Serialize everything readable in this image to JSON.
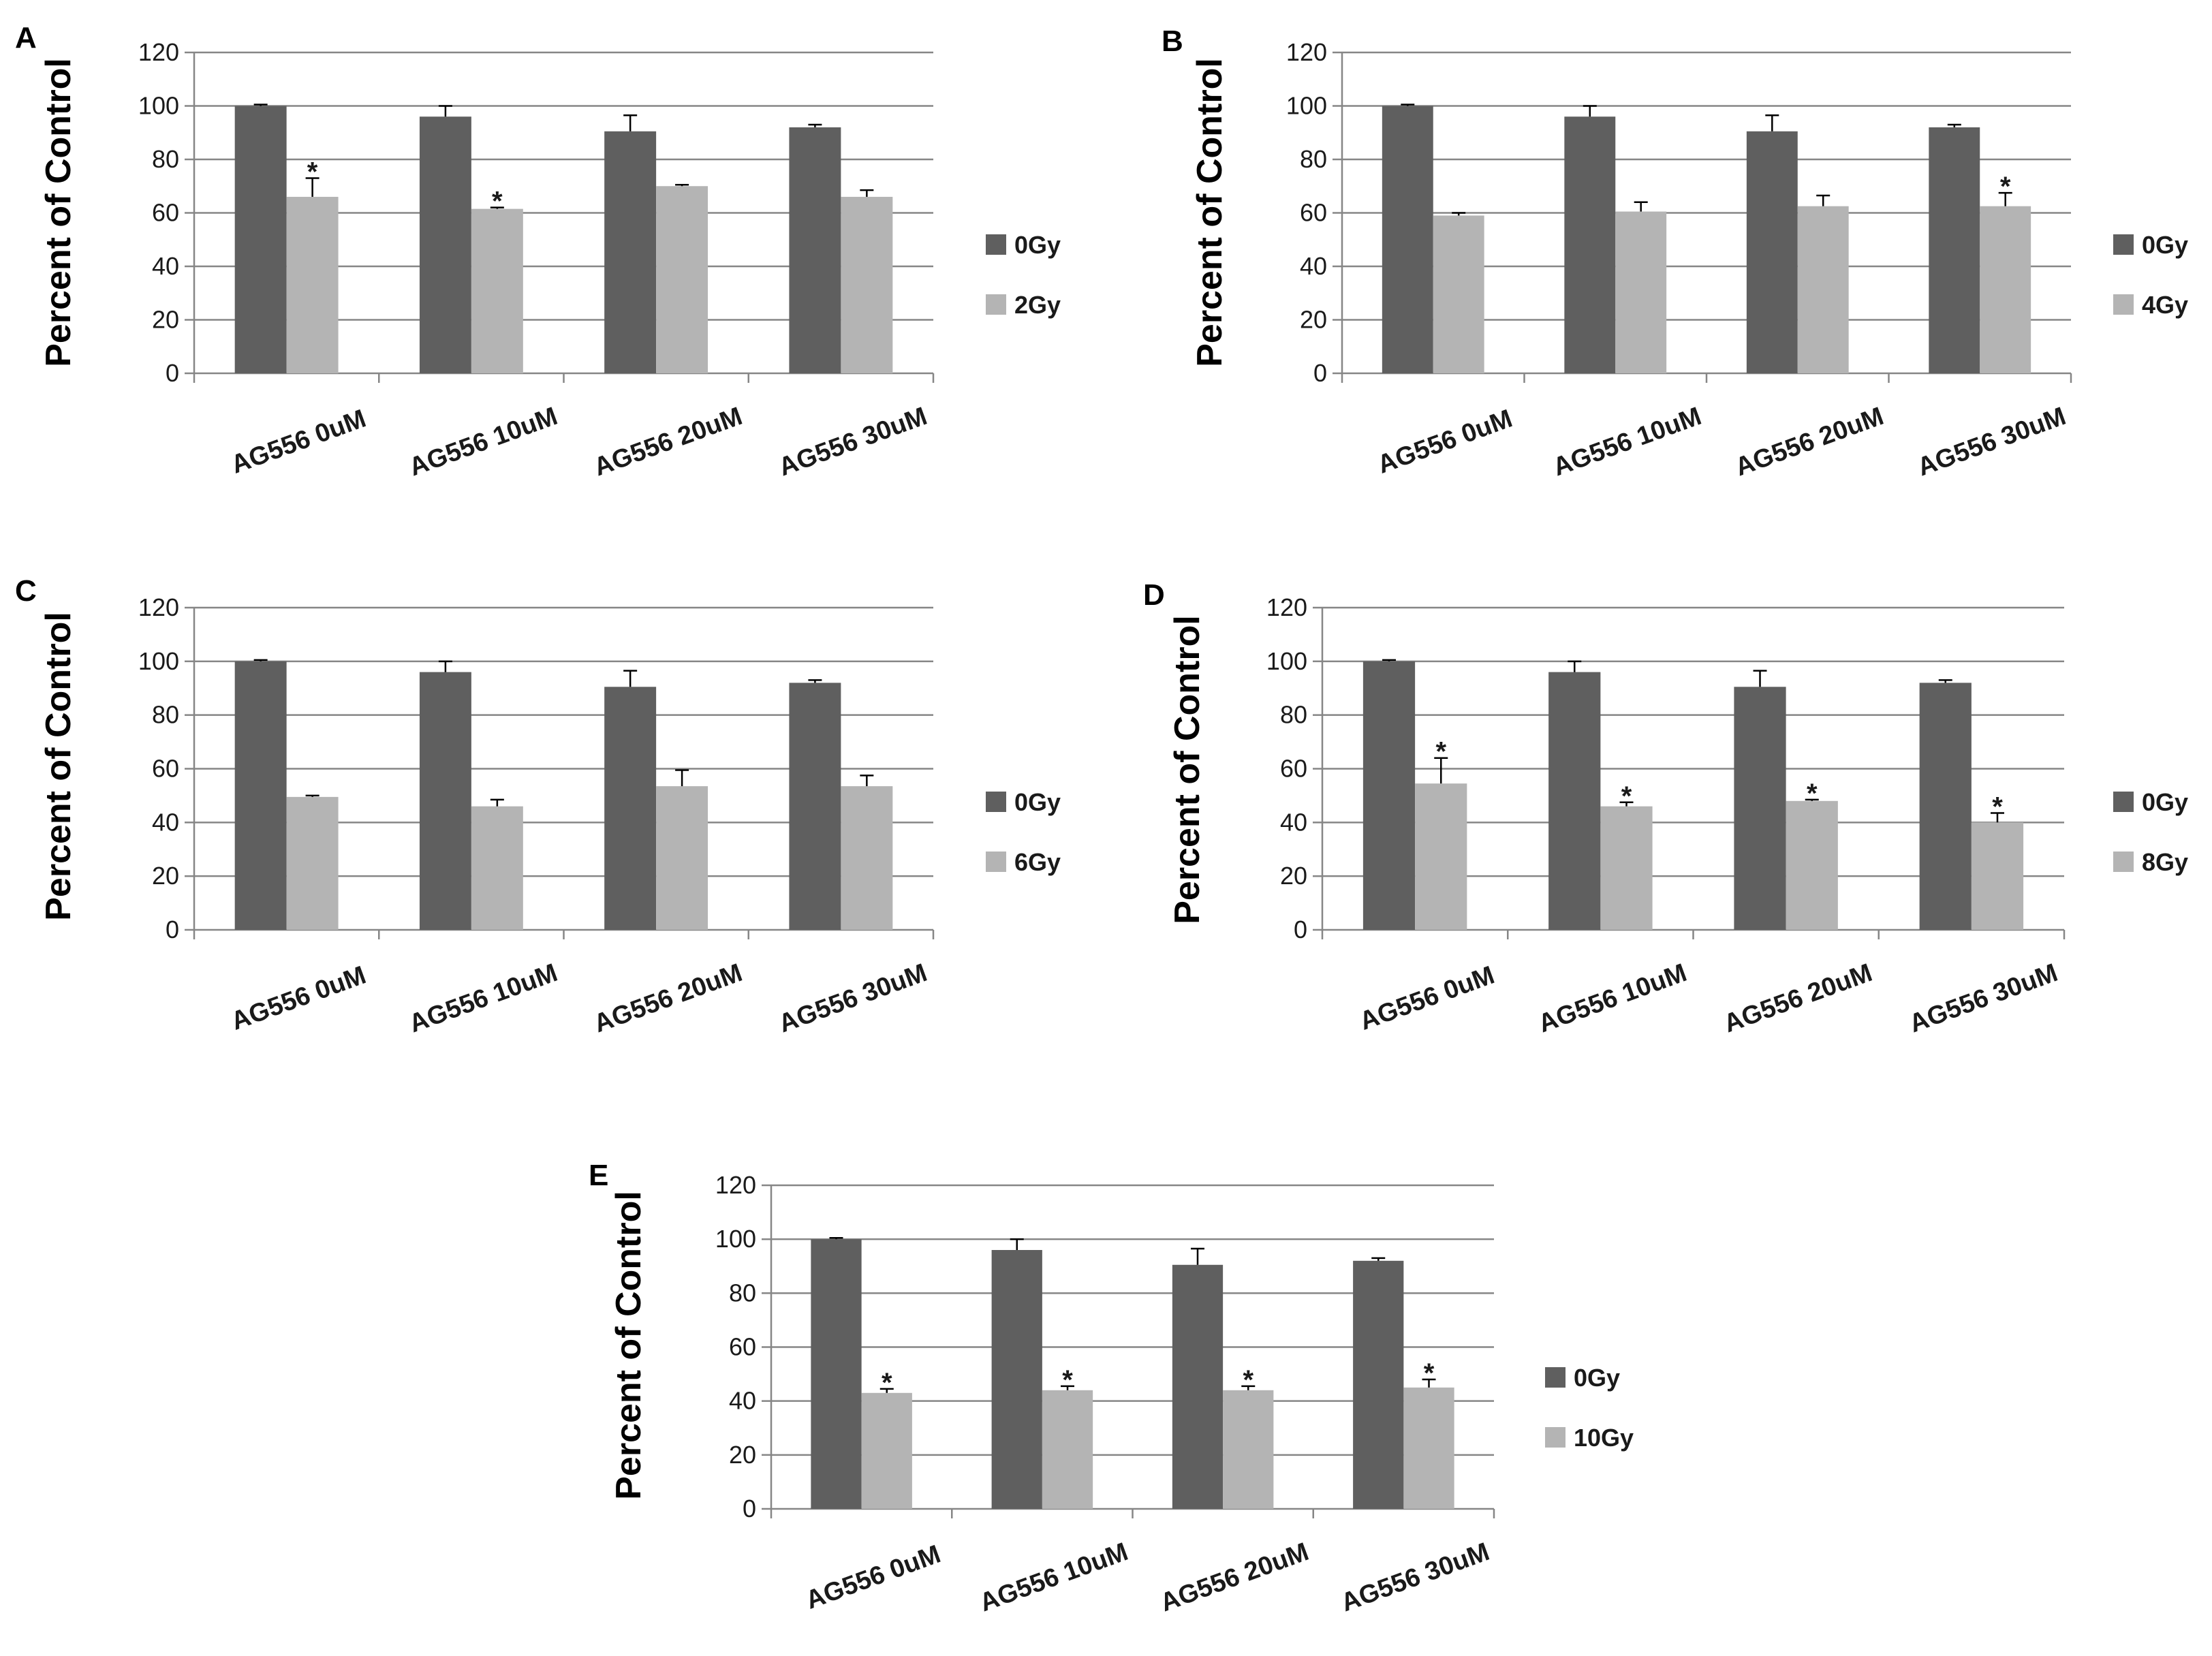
{
  "chart_data": [
    {
      "panel": "A",
      "type": "bar",
      "ylabel": "Percent of Control",
      "ylim": [
        0,
        120
      ],
      "yticks": [
        "0",
        "20",
        "40",
        "60",
        "80",
        "100",
        "120"
      ],
      "grid": true,
      "categories": [
        "AG556 0uM",
        "AG556 10uM",
        "AG556 20uM",
        "AG556 30uM"
      ],
      "series": [
        {
          "name": "0Gy",
          "color": "#5f5f5f",
          "values": [
            100,
            96,
            90.5,
            92
          ],
          "errors": [
            0.5,
            4,
            6,
            1
          ]
        },
        {
          "name": "2Gy",
          "color": "#b4b4b4",
          "values": [
            66,
            61.5,
            70,
            66
          ],
          "errors": [
            7,
            0.5,
            0.5,
            2.5
          ],
          "significance": [
            "*",
            "*",
            "",
            ""
          ]
        }
      ],
      "legend": "right"
    },
    {
      "panel": "B",
      "type": "bar",
      "ylabel": "Percent of Control",
      "ylim": [
        0,
        120
      ],
      "yticks": [
        "0",
        "20",
        "40",
        "60",
        "80",
        "100",
        "120"
      ],
      "grid": true,
      "categories": [
        "AG556 0uM",
        "AG556 10uM",
        "AG556 20uM",
        "AG556 30uM"
      ],
      "series": [
        {
          "name": "0Gy",
          "color": "#5f5f5f",
          "values": [
            100,
            96,
            90.5,
            92
          ],
          "errors": [
            0.5,
            4,
            6,
            1
          ]
        },
        {
          "name": "4Gy",
          "color": "#b4b4b4",
          "values": [
            59,
            60.5,
            62.5,
            62.5
          ],
          "errors": [
            1,
            3.5,
            4,
            5
          ],
          "significance": [
            "",
            "",
            "",
            "*"
          ]
        }
      ],
      "legend": "right"
    },
    {
      "panel": "C",
      "type": "bar",
      "ylabel": "Percent of Control",
      "ylim": [
        0,
        120
      ],
      "yticks": [
        "0",
        "20",
        "40",
        "60",
        "80",
        "100",
        "120"
      ],
      "grid": true,
      "categories": [
        "AG556 0uM",
        "AG556 10uM",
        "AG556 20uM",
        "AG556 30uM"
      ],
      "series": [
        {
          "name": "0Gy",
          "color": "#5f5f5f",
          "values": [
            100,
            96,
            90.5,
            92
          ],
          "errors": [
            0.5,
            4,
            6,
            1
          ]
        },
        {
          "name": "6Gy",
          "color": "#b4b4b4",
          "values": [
            49.5,
            46,
            53.5,
            53.5
          ],
          "errors": [
            0.5,
            2.5,
            6,
            4
          ],
          "significance": [
            "",
            "",
            "",
            ""
          ]
        }
      ],
      "legend": "right"
    },
    {
      "panel": "D",
      "type": "bar",
      "ylabel": "Percent of Control",
      "ylim": [
        0,
        120
      ],
      "yticks": [
        "0",
        "20",
        "40",
        "60",
        "80",
        "100",
        "120"
      ],
      "grid": true,
      "categories": [
        "AG556 0uM",
        "AG556 10uM",
        "AG556 20uM",
        "AG556 30uM"
      ],
      "series": [
        {
          "name": "0Gy",
          "color": "#5f5f5f",
          "values": [
            100,
            96,
            90.5,
            92
          ],
          "errors": [
            0.5,
            4,
            6,
            1
          ]
        },
        {
          "name": "8Gy",
          "color": "#b4b4b4",
          "values": [
            54.5,
            46,
            48,
            40
          ],
          "errors": [
            9.5,
            1.5,
            0.5,
            3.5
          ],
          "significance": [
            "*",
            "*",
            "*",
            "*"
          ]
        }
      ],
      "legend": "right"
    },
    {
      "panel": "E",
      "type": "bar",
      "ylabel": "Percent of Control",
      "ylim": [
        0,
        120
      ],
      "yticks": [
        "0",
        "20",
        "40",
        "60",
        "80",
        "100",
        "120"
      ],
      "grid": true,
      "categories": [
        "AG556 0uM",
        "AG556 10uM",
        "AG556 20uM",
        "AG556 30uM"
      ],
      "series": [
        {
          "name": "0Gy",
          "color": "#5f5f5f",
          "values": [
            100,
            96,
            90.5,
            92
          ],
          "errors": [
            0.5,
            4,
            6,
            1
          ]
        },
        {
          "name": "10Gy",
          "color": "#b4b4b4",
          "values": [
            43,
            44,
            44,
            45
          ],
          "errors": [
            1.5,
            1.5,
            1.5,
            3
          ],
          "significance": [
            "*",
            "*",
            "*",
            "*"
          ]
        }
      ],
      "legend": "right"
    }
  ]
}
